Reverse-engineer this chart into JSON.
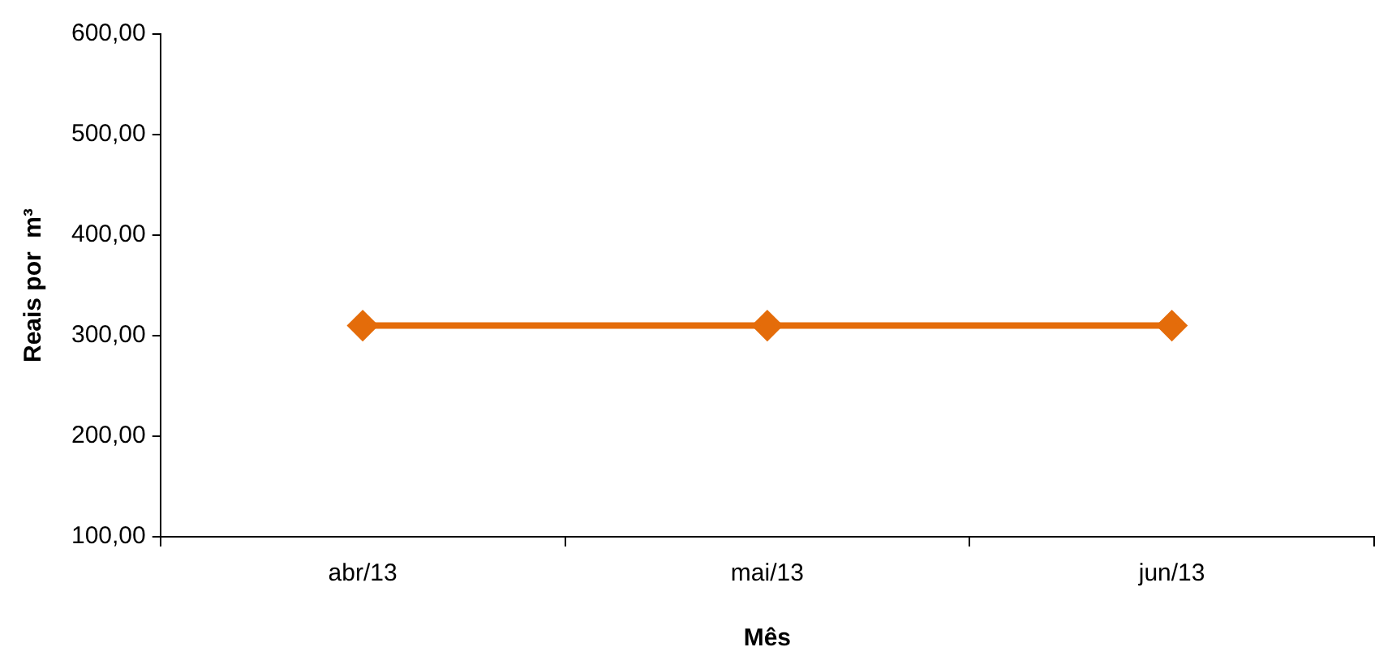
{
  "chart_data": {
    "type": "line",
    "xlabel": "Mês",
    "ylabel": "Reais por  m³",
    "categories": [
      "abr/13",
      "mai/13",
      "jun/13"
    ],
    "series": [
      {
        "color": "#e46c0a",
        "values": [
          310,
          310,
          310
        ]
      }
    ],
    "ylim": [
      100,
      600
    ],
    "yticks": [
      {
        "value": 100,
        "label": "100,00"
      },
      {
        "value": 200,
        "label": "200,00"
      },
      {
        "value": 300,
        "label": "300,00"
      },
      {
        "value": 400,
        "label": "400,00"
      },
      {
        "value": 500,
        "label": "500,00"
      },
      {
        "value": 600,
        "label": "600,00"
      }
    ],
    "marker": "diamond",
    "line_style": "solid",
    "legend": false,
    "grid": false
  }
}
